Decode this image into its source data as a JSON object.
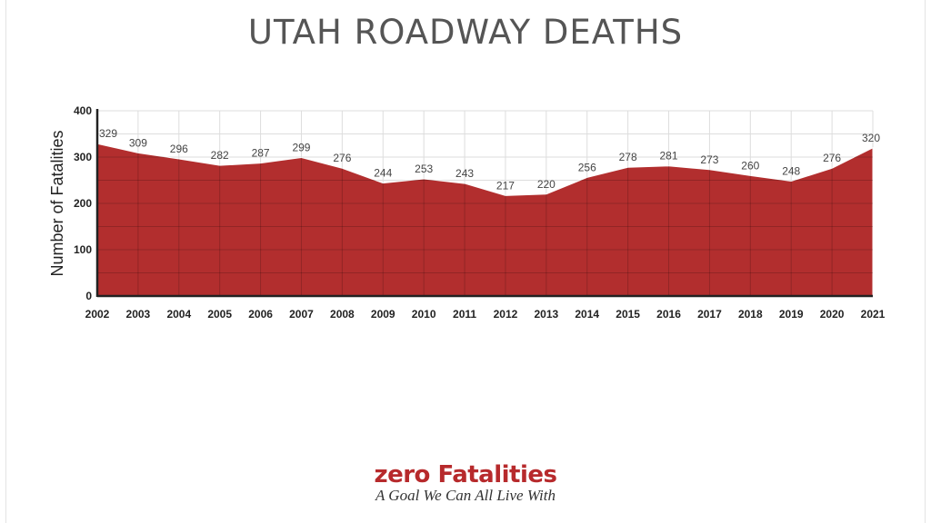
{
  "chart_data": {
    "type": "area",
    "title": "UTAH ROADWAY DEATHS",
    "xlabel": "",
    "ylabel": "Number of Fatalities",
    "categories": [
      "2002",
      "2003",
      "2004",
      "2005",
      "2006",
      "2007",
      "2008",
      "2009",
      "2010",
      "2011",
      "2012",
      "2013",
      "2014",
      "2015",
      "2016",
      "2017",
      "2018",
      "2019",
      "2020",
      "2021"
    ],
    "values": [
      329,
      309,
      296,
      282,
      287,
      299,
      276,
      244,
      253,
      243,
      217,
      220,
      256,
      278,
      281,
      273,
      260,
      248,
      276,
      320
    ],
    "ylim": [
      0,
      400
    ],
    "yticks": [
      0,
      100,
      200,
      300,
      400
    ],
    "grid": true,
    "fill_color": "#b22e2e",
    "data_labels": true
  },
  "logo": {
    "text": "zero Fatalities",
    "tagline": "A Goal We Can All Live With",
    "color": "#b72a2c"
  }
}
